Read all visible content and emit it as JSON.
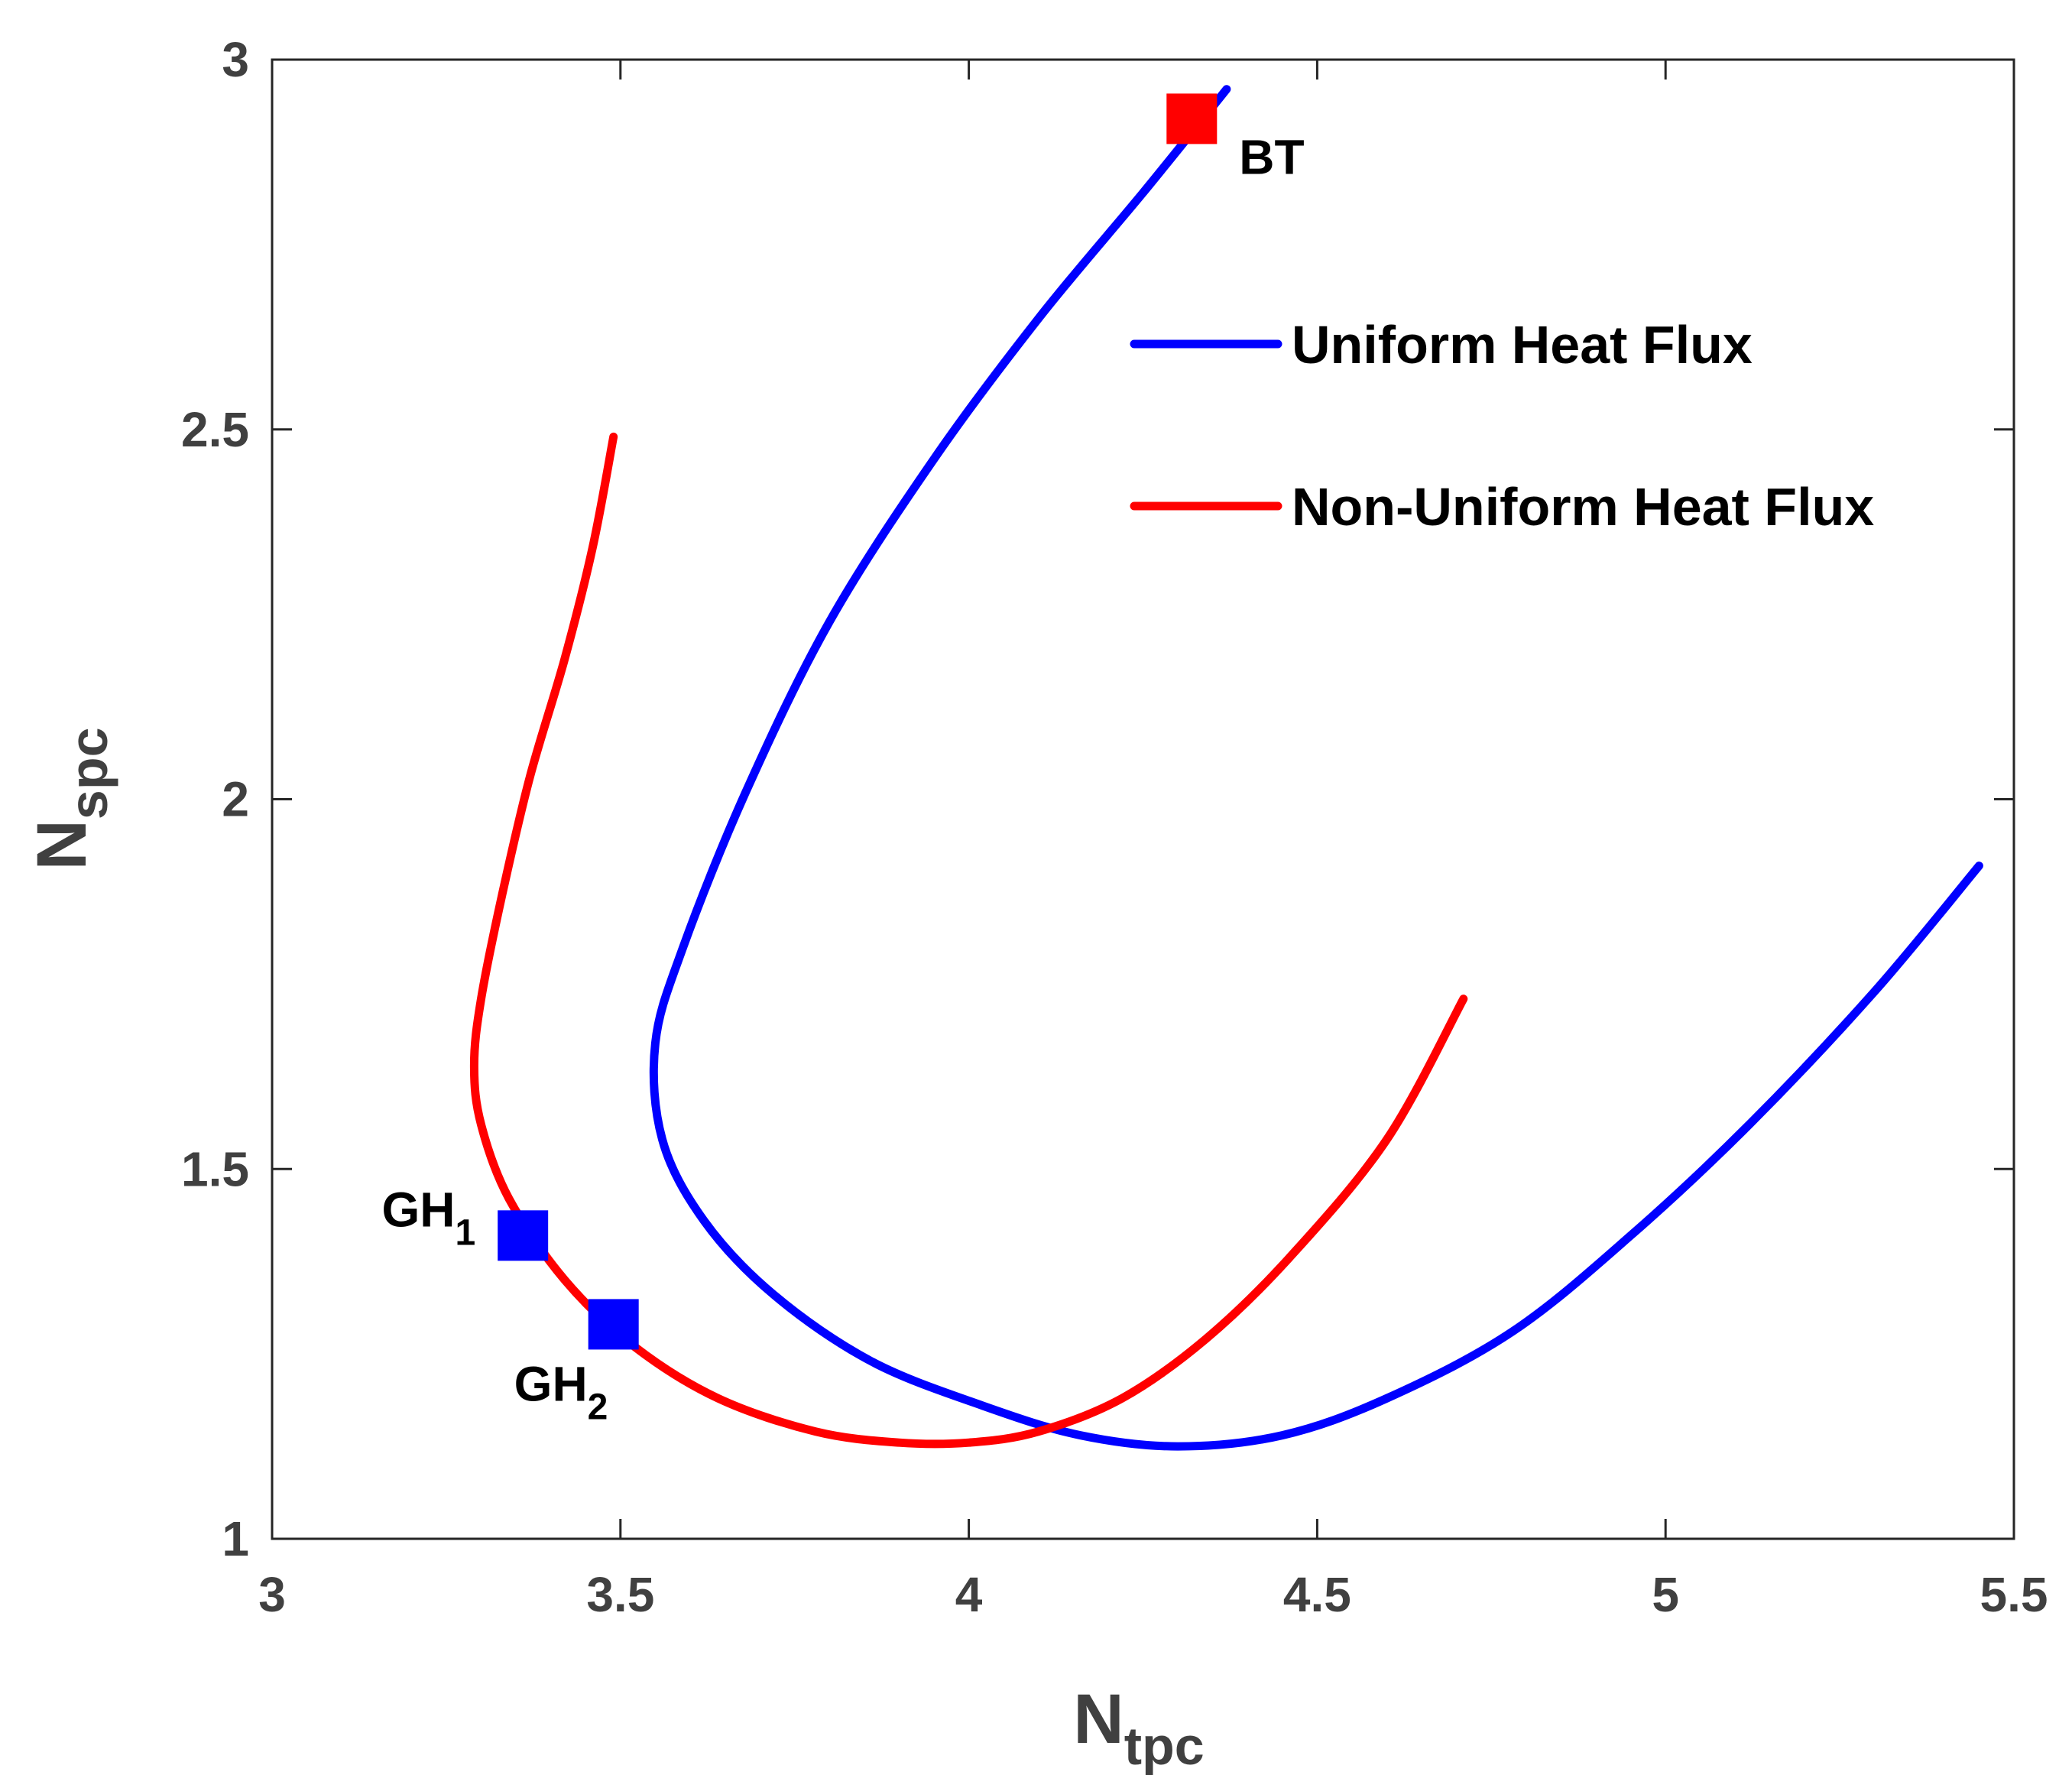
{
  "chart_data": {
    "type": "line",
    "xlabel": {
      "main": "N",
      "sub": "tpc"
    },
    "ylabel": {
      "main": "N",
      "sub": "spc"
    },
    "xlim": [
      3,
      5.5
    ],
    "ylim": [
      1,
      3
    ],
    "xticks": [
      3,
      3.5,
      4,
      4.5,
      5,
      5.5
    ],
    "yticks": [
      1,
      1.5,
      2,
      2.5,
      3
    ],
    "xtick_labels": [
      "3",
      "3.5",
      "4",
      "4.5",
      "5",
      "5.5"
    ],
    "ytick_labels": [
      "1",
      "1.5",
      "2",
      "2.5",
      "3"
    ],
    "grid": false,
    "box": true,
    "legend_placement": "top-right",
    "series": [
      {
        "name": "Uniform Heat Flux",
        "color": "#0000ff",
        "points": [
          [
            4.37,
            2.96
          ],
          [
            4.25,
            2.82
          ],
          [
            4.1,
            2.65
          ],
          [
            3.95,
            2.46
          ],
          [
            3.8,
            2.24
          ],
          [
            3.68,
            2.01
          ],
          [
            3.59,
            1.8
          ],
          [
            3.55,
            1.67
          ],
          [
            3.56,
            1.54
          ],
          [
            3.62,
            1.43
          ],
          [
            3.72,
            1.33
          ],
          [
            3.86,
            1.24
          ],
          [
            4.02,
            1.18
          ],
          [
            4.16,
            1.14
          ],
          [
            4.3,
            1.125
          ],
          [
            4.45,
            1.14
          ],
          [
            4.6,
            1.19
          ],
          [
            4.78,
            1.28
          ],
          [
            4.95,
            1.41
          ],
          [
            5.12,
            1.56
          ],
          [
            5.3,
            1.74
          ],
          [
            5.45,
            1.91
          ]
        ]
      },
      {
        "name": "Non-Uniform Heat Flux",
        "color": "#ff0000",
        "points": [
          [
            3.49,
            2.49
          ],
          [
            3.46,
            2.34
          ],
          [
            3.42,
            2.19
          ],
          [
            3.37,
            2.03
          ],
          [
            3.33,
            1.87
          ],
          [
            3.3,
            1.73
          ],
          [
            3.29,
            1.64
          ],
          [
            3.3,
            1.56
          ],
          [
            3.34,
            1.46
          ],
          [
            3.42,
            1.35
          ],
          [
            3.52,
            1.26
          ],
          [
            3.64,
            1.19
          ],
          [
            3.78,
            1.145
          ],
          [
            3.9,
            1.13
          ],
          [
            4.0,
            1.13
          ],
          [
            4.1,
            1.145
          ],
          [
            4.22,
            1.19
          ],
          [
            4.34,
            1.27
          ],
          [
            4.46,
            1.38
          ],
          [
            4.6,
            1.54
          ],
          [
            4.71,
            1.73
          ]
        ]
      }
    ],
    "markers": [
      {
        "label": "BT",
        "sub": "",
        "x": 4.32,
        "y": 2.92,
        "color": "#ff0000",
        "label_side": "below-right"
      },
      {
        "label": "GH",
        "sub": "1",
        "x": 3.36,
        "y": 1.41,
        "color": "#0000ff",
        "label_side": "left"
      },
      {
        "label": "GH",
        "sub": "2",
        "x": 3.49,
        "y": 1.29,
        "color": "#0000ff",
        "label_side": "below"
      }
    ]
  }
}
